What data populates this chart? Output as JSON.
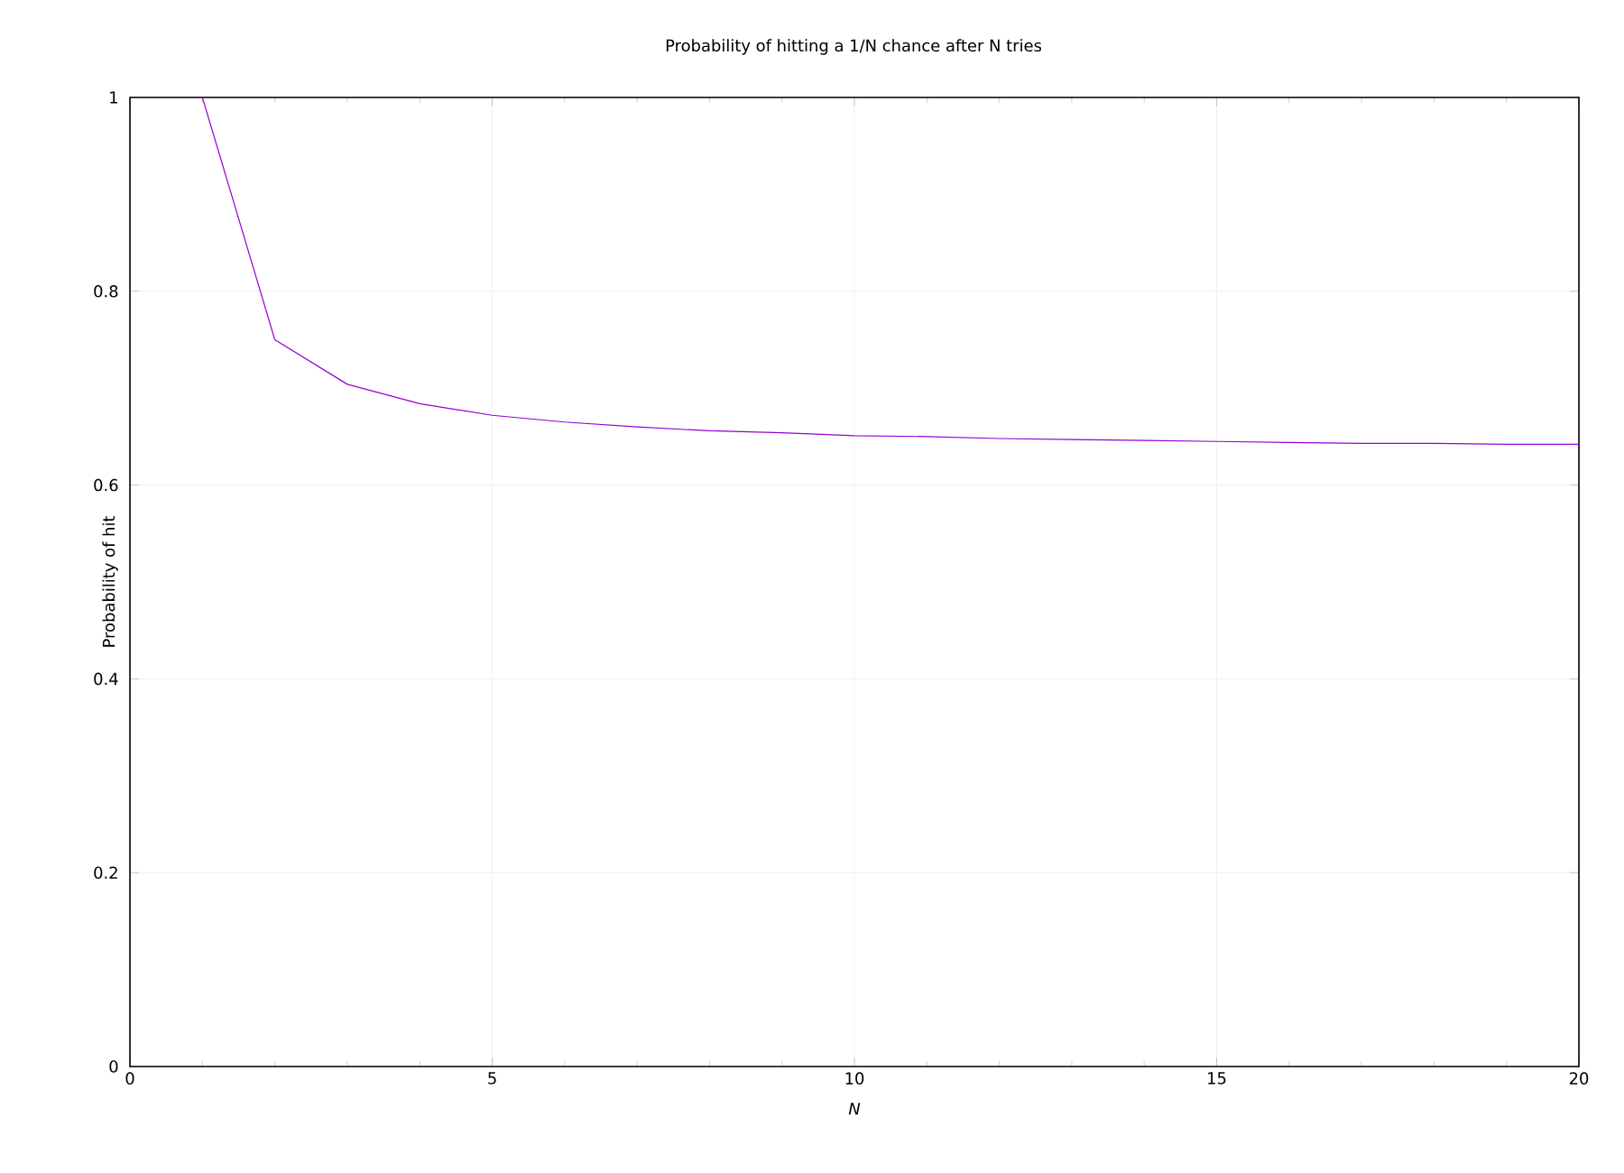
{
  "chart_data": {
    "type": "line",
    "title": "Probability of hitting a 1/N chance after N tries",
    "xlabel": "N",
    "ylabel": "Probability of hit",
    "x": [
      1,
      2,
      3,
      4,
      5,
      6,
      7,
      8,
      9,
      10,
      11,
      12,
      13,
      14,
      15,
      16,
      17,
      18,
      19,
      20
    ],
    "series": [
      {
        "color": "#9400d3",
        "values": [
          1,
          0.75,
          0.704,
          0.684,
          0.672,
          0.665,
          0.66,
          0.656,
          0.654,
          0.651,
          0.65,
          0.648,
          0.647,
          0.646,
          0.645,
          0.644,
          0.643,
          0.643,
          0.642,
          0.642
        ]
      }
    ],
    "xlim": [
      0,
      20
    ],
    "ylim": [
      0,
      1
    ],
    "xticks": [
      0,
      5,
      10,
      15,
      20
    ],
    "yticks": [
      0,
      0.2,
      0.4,
      0.6,
      0.8,
      1
    ],
    "grid": true,
    "marker": "none",
    "line_style": "solid"
  }
}
